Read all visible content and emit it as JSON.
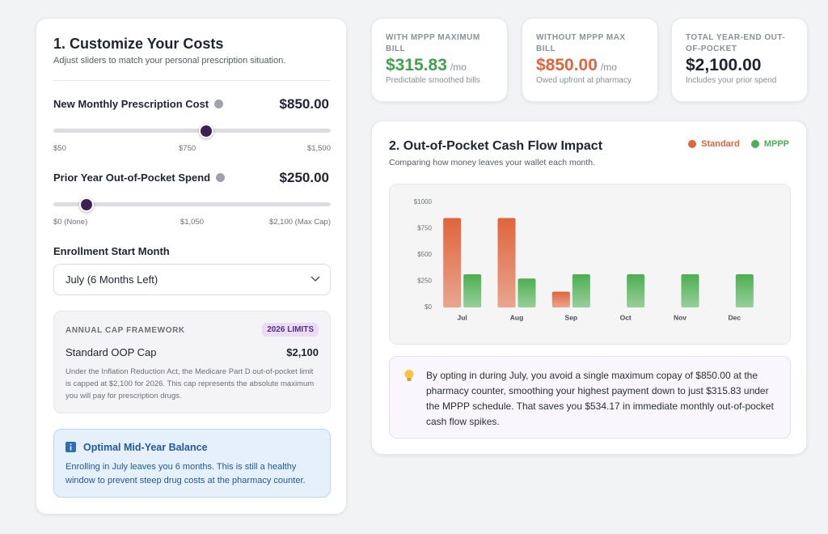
{
  "left": {
    "title": "1. Customize Your Costs",
    "subtitle": "Adjust sliders to match your personal prescription situation.",
    "sliders": [
      {
        "label": "New Monthly Prescription Cost",
        "display": "$850.00",
        "value": 850,
        "ticks": [
          {
            "value": 50,
            "label": "$50"
          },
          {
            "value": 750,
            "label": "$750"
          },
          {
            "value": 1500,
            "label": "$1,500"
          }
        ]
      },
      {
        "label": "Prior Year Out-of-Pocket Spend",
        "display": "$250.00",
        "value": 250,
        "ticks": [
          {
            "value": 0,
            "label": "$0 (None)"
          },
          {
            "value": 1050,
            "label": "$1,050"
          },
          {
            "value": 2100,
            "label": "$2,100 (Max Cap)"
          }
        ]
      }
    ],
    "enrollment": {
      "label": "Enrollment Start Month",
      "selected": "July (6 Months Left)"
    },
    "framework": {
      "heading": "ANNUAL CAP FRAMEWORK",
      "badge": "2026 LIMITS",
      "row_label": "Standard OOP Cap",
      "row_value": "$2,100",
      "note": "Under the Inflation Reduction Act, the Medicare Part D out-of-pocket limit is capped at $2,100 for 2026. This cap represents the absolute maximum you will pay for prescription drugs."
    },
    "info": {
      "title": "Optimal Mid-Year Balance",
      "text": "Enrolling in July leaves you 6 months. This is still a healthy window to prevent steep drug costs at the pharmacy counter."
    }
  },
  "stats": [
    {
      "label": "WITH MPPP MAXIMUM BILL",
      "value": "$315.83",
      "unit": "/mo",
      "note": "Predictable smoothed bills",
      "color": "#3fa34d"
    },
    {
      "label": "WITHOUT MPPP MAX BILL",
      "value": "$850.00",
      "unit": "/mo",
      "note": "Owed upfront at pharmacy",
      "color": "#e0643c"
    },
    {
      "label": "TOTAL YEAR-END OUT-OF-POCKET",
      "value": "$2,100.00",
      "note": "Includes your prior spend",
      "color": "#1f2430"
    }
  ],
  "chart_data": {
    "type": "bar",
    "title": "2. Out-of-Pocket Cash Flow Impact",
    "subtitle": "Comparing how money leaves your wallet each month.",
    "categories": [
      "Jul",
      "Aug",
      "Sep",
      "Oct",
      "Nov",
      "Dec"
    ],
    "series": [
      {
        "name": "Standard",
        "color": "#e0643c",
        "values": [
          850,
          850,
          150,
          0,
          0,
          0
        ]
      },
      {
        "name": "MPPP",
        "color": "#4caf50",
        "values": [
          315.83,
          275,
          315.83,
          315.83,
          315.83,
          315.83
        ]
      }
    ],
    "ylim": [
      0,
      1000
    ],
    "yticks": [
      {
        "value": 0,
        "label": "$0"
      },
      {
        "value": 250,
        "label": "$250"
      },
      {
        "value": 500,
        "label": "$500"
      },
      {
        "value": 750,
        "label": "$750"
      },
      {
        "value": 1000,
        "label": "$1000"
      }
    ],
    "grid": false,
    "legend": "top-right"
  },
  "tip": "By opting in during July, you avoid a single maximum copay of $850.00 at the pharmacy counter, smoothing your highest payment down to just $315.83 under the MPPP schedule. That saves you $534.17 in immediate monthly out-of-pocket cash flow spikes."
}
